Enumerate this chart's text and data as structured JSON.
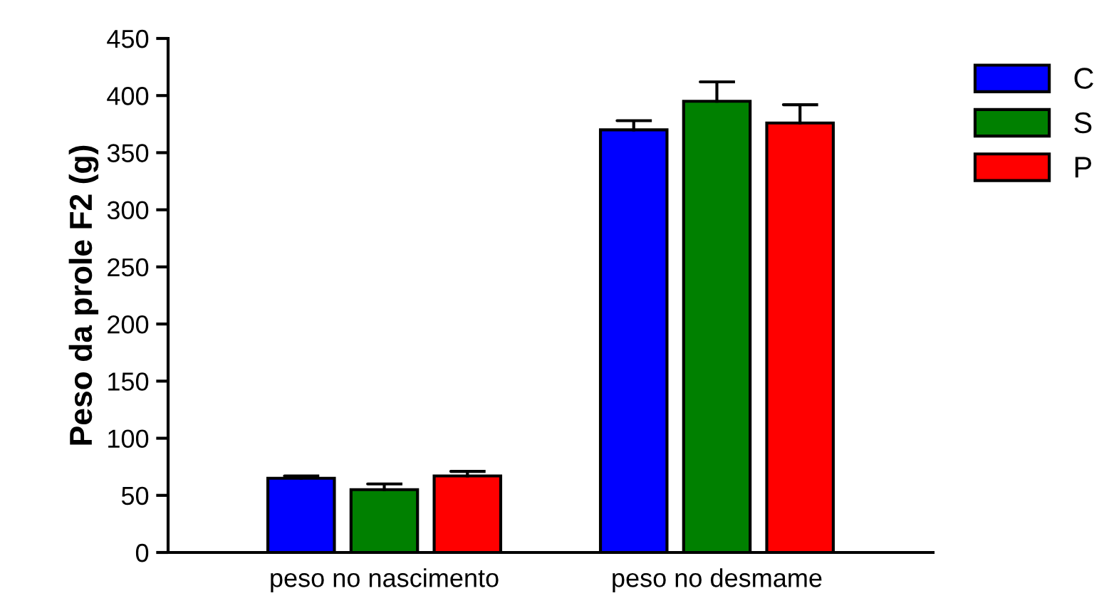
{
  "chart_data": {
    "type": "bar",
    "ylabel": "Peso da prole F2 (g)",
    "categories": [
      "peso no nascimento",
      "peso no desmame"
    ],
    "series": [
      {
        "name": "C",
        "color": "#0000ff",
        "values": [
          65,
          370
        ],
        "errors": [
          [
            65,
            67
          ],
          [
            370,
            378
          ]
        ]
      },
      {
        "name": "S",
        "color": "#008000",
        "values": [
          55,
          395
        ],
        "errors": [
          [
            55,
            60
          ],
          [
            395,
            412
          ]
        ]
      },
      {
        "name": "P",
        "color": "#ff0000",
        "values": [
          67,
          376
        ],
        "errors": [
          [
            67,
            71
          ],
          [
            376,
            392
          ]
        ]
      }
    ],
    "ylim": [
      0,
      450
    ],
    "yticks": [
      0,
      50,
      100,
      150,
      200,
      250,
      300,
      350,
      400,
      450
    ],
    "grid": false,
    "legend": "top right"
  }
}
